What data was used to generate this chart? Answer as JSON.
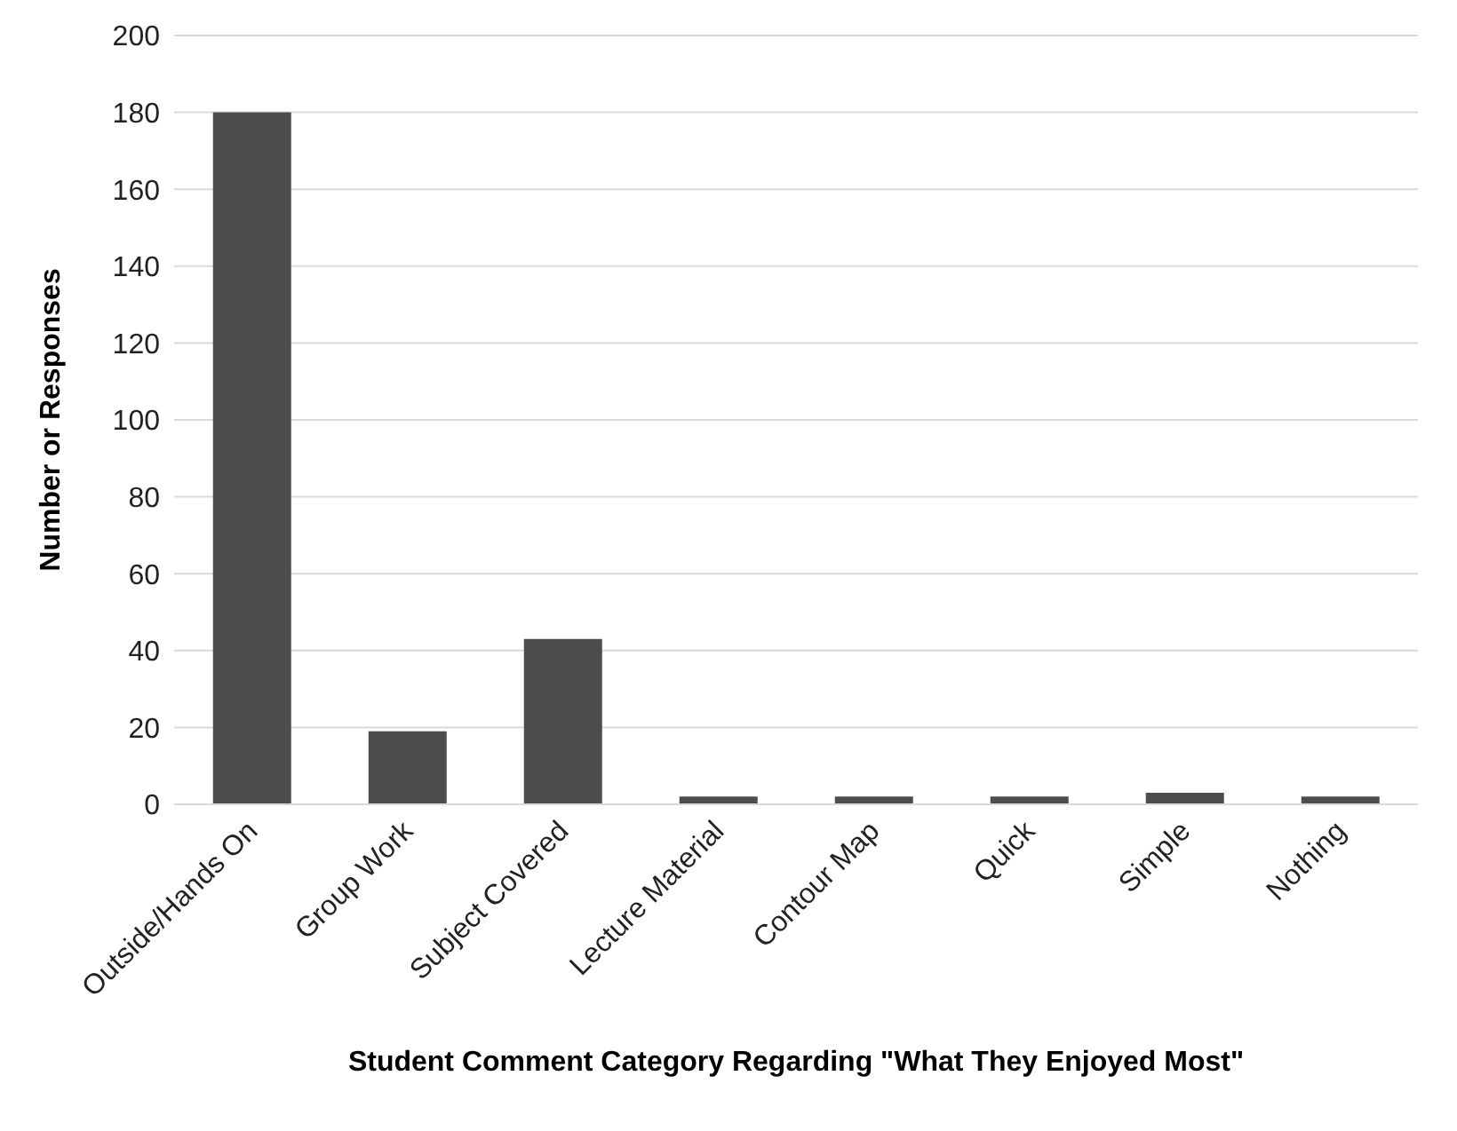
{
  "chart_data": {
    "type": "bar",
    "xlabel": "Student Comment Category Regarding \"What They Enjoyed Most\"",
    "ylabel": "Number or Responses",
    "categories": [
      "Outside/Hands On",
      "Group Work",
      "Subject Covered",
      "Lecture Material",
      "Contour Map",
      "Quick",
      "Simple",
      "Nothing"
    ],
    "values": [
      180,
      19,
      43,
      2,
      2,
      2,
      3,
      2
    ],
    "color": "#4d4d4d",
    "ylim": [
      0,
      200
    ],
    "yticks": [
      0,
      20,
      40,
      60,
      80,
      100,
      120,
      140,
      160,
      180,
      200
    ],
    "grid": "y"
  }
}
